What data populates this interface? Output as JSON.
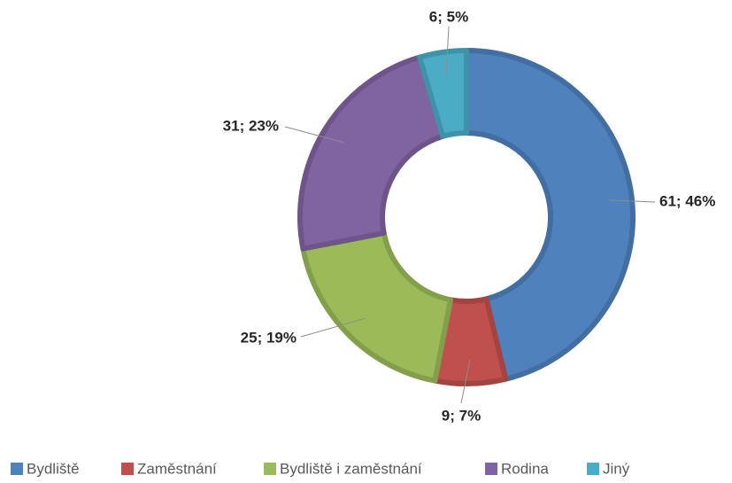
{
  "chart_data": {
    "type": "donut",
    "categories": [
      "Bydliště",
      "Zaměstnání",
      "Bydliště i zaměstnání",
      "Rodina",
      "Jiný"
    ],
    "values": [
      61,
      9,
      25,
      31,
      6
    ],
    "value_labels": [
      "61; 46%",
      "9; 7%",
      "25; 19%",
      "31; 23%",
      "6; 5%"
    ],
    "colors": [
      "#4f81bd",
      "#c0504d",
      "#9bbb59",
      "#8064a2",
      "#4bacc6"
    ],
    "legend": "bottom"
  }
}
